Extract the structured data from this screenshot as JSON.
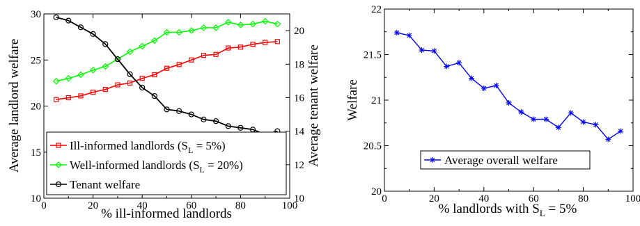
{
  "chart_data": [
    {
      "type": "line",
      "xlabel": "% ill-informed landlords",
      "ylabel_left": "Average landlord welfare",
      "ylabel_right": "Average tenant welfare",
      "xlim": [
        0,
        100
      ],
      "ylim_left": [
        10,
        30
      ],
      "ylim_right": [
        10,
        21
      ],
      "xticks": [
        "0",
        "20",
        "40",
        "60",
        "80",
        "100"
      ],
      "yticks_left": [
        "10",
        "15",
        "20",
        "25",
        "30"
      ],
      "yticks_right": [
        "10",
        "12",
        "14",
        "16",
        "18",
        "20"
      ],
      "x": [
        5,
        10,
        15,
        20,
        25,
        30,
        35,
        40,
        45,
        50,
        55,
        60,
        65,
        70,
        75,
        80,
        85,
        90,
        95
      ],
      "series": [
        {
          "name": "Ill-informed landlords (S_L = 5%)",
          "legend": {
            "main": "Ill-informed landlords (S",
            "sub": "L",
            "rest": " = 5%)"
          },
          "axis": "left",
          "color": "#ff0000",
          "marker": "square",
          "values": [
            20.7,
            20.9,
            21.1,
            21.5,
            21.8,
            22.3,
            22.5,
            23.0,
            23.4,
            24.1,
            24.5,
            25.0,
            25.5,
            25.6,
            26.3,
            26.4,
            26.7,
            26.9,
            27.0
          ]
        },
        {
          "name": "Well-informed landlords (S_L = 20%)",
          "legend": {
            "main": "Well-informed landlords (S",
            "sub": "L",
            "rest": " = 20%)"
          },
          "axis": "left",
          "color": "#00ff00",
          "marker": "diamond",
          "values": [
            22.7,
            23.0,
            23.4,
            23.9,
            24.3,
            25.1,
            25.9,
            26.5,
            27.1,
            28.0,
            28.0,
            28.2,
            28.5,
            28.5,
            29.1,
            28.8,
            28.9,
            29.2,
            28.9
          ]
        },
        {
          "name": "Tenant welfare",
          "legend": {
            "main": "Tenant welfare",
            "sub": "",
            "rest": ""
          },
          "axis": "right",
          "color": "#000000",
          "marker": "circle",
          "values": [
            20.8,
            20.6,
            20.2,
            19.8,
            19.2,
            18.3,
            17.4,
            16.6,
            16.1,
            15.3,
            15.2,
            15.0,
            14.7,
            14.6,
            14.3,
            14.2,
            14.1,
            13.8,
            14.0
          ]
        }
      ]
    },
    {
      "type": "line",
      "xlabel": {
        "main": "% landlords with S",
        "sub": "L",
        "rest": " = 5%"
      },
      "ylabel": "Welfare",
      "xlim": [
        0,
        100
      ],
      "ylim": [
        20,
        22
      ],
      "xticks": [
        "0",
        "20",
        "40",
        "60",
        "80",
        "100"
      ],
      "yticks": [
        "20",
        "20.5",
        "21",
        "21.5",
        "22"
      ],
      "x": [
        5,
        10,
        15,
        20,
        25,
        30,
        35,
        40,
        45,
        50,
        55,
        60,
        65,
        70,
        75,
        80,
        85,
        90,
        95
      ],
      "series": [
        {
          "name": "Average overall welfare",
          "color": "#0000ff",
          "marker": "asterisk",
          "values": [
            21.74,
            21.71,
            21.55,
            21.54,
            21.37,
            21.41,
            21.24,
            21.13,
            21.16,
            20.97,
            20.87,
            20.79,
            20.79,
            20.7,
            20.86,
            20.76,
            20.73,
            20.57,
            20.66
          ]
        }
      ]
    }
  ]
}
